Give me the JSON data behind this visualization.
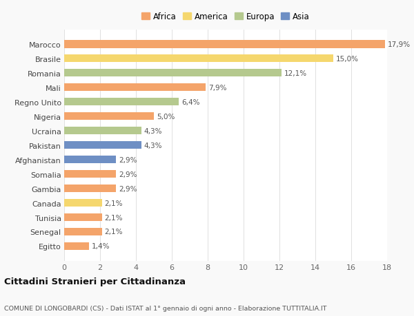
{
  "countries": [
    "Marocco",
    "Brasile",
    "Romania",
    "Mali",
    "Regno Unito",
    "Nigeria",
    "Ucraina",
    "Pakistan",
    "Afghanistan",
    "Somalia",
    "Gambia",
    "Canada",
    "Tunisia",
    "Senegal",
    "Egitto"
  ],
  "values": [
    17.9,
    15.0,
    12.1,
    7.9,
    6.4,
    5.0,
    4.3,
    4.3,
    2.9,
    2.9,
    2.9,
    2.1,
    2.1,
    2.1,
    1.4
  ],
  "labels": [
    "17,9%",
    "15,0%",
    "12,1%",
    "7,9%",
    "6,4%",
    "5,0%",
    "4,3%",
    "4,3%",
    "2,9%",
    "2,9%",
    "2,9%",
    "2,1%",
    "2,1%",
    "2,1%",
    "1,4%"
  ],
  "continents": [
    "Africa",
    "America",
    "Europa",
    "Africa",
    "Europa",
    "Africa",
    "Europa",
    "Asia",
    "Asia",
    "Africa",
    "Africa",
    "America",
    "Africa",
    "Africa",
    "Africa"
  ],
  "colors": {
    "Africa": "#F4A46A",
    "America": "#F5D76E",
    "Europa": "#B5C98E",
    "Asia": "#6E8FC4"
  },
  "legend_order": [
    "Africa",
    "America",
    "Europa",
    "Asia"
  ],
  "title": "Cittadini Stranieri per Cittadinanza",
  "subtitle": "COMUNE DI LONGOBARDI (CS) - Dati ISTAT al 1° gennaio di ogni anno - Elaborazione TUTTITALIA.IT",
  "xlim": [
    0,
    18
  ],
  "xticks": [
    0,
    2,
    4,
    6,
    8,
    10,
    12,
    14,
    16,
    18
  ],
  "background_color": "#f9f9f9",
  "plot_bg_color": "#ffffff",
  "grid_color": "#e0e0e0"
}
